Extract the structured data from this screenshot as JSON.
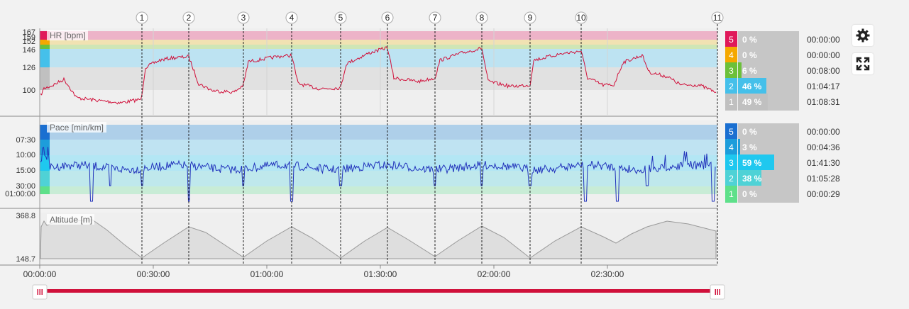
{
  "panels": {
    "hr": {
      "title": "HR [bpm]",
      "ticks": [
        "167",
        "159",
        "152",
        "146",
        "126",
        "100"
      ]
    },
    "pace": {
      "title": "Pace [min/km]",
      "ticks": [
        "07:30",
        "10:00",
        "15:00",
        "30:00",
        "01:00:00"
      ]
    },
    "altitude": {
      "title": "Altitude [m]",
      "ticks": [
        "368.8",
        "148.7"
      ]
    }
  },
  "time_axis": [
    "00:00:00",
    "00:30:00",
    "01:00:00",
    "01:30:00",
    "02:00:00",
    "02:30:00"
  ],
  "laps": [
    "1",
    "2",
    "3",
    "4",
    "5",
    "6",
    "7",
    "8",
    "9",
    "10",
    "11"
  ],
  "hr_zones": [
    {
      "num": "5",
      "pct": "0 %",
      "time": "00:00:00",
      "color": "#e0195a",
      "fraction": 0
    },
    {
      "num": "4",
      "pct": "0 %",
      "time": "00:00:00",
      "color": "#f5a800",
      "fraction": 0
    },
    {
      "num": "3",
      "pct": "6 %",
      "time": "00:08:00",
      "color": "#6cc03a",
      "fraction": 0.06
    },
    {
      "num": "2",
      "pct": "46 %",
      "time": "01:04:17",
      "color": "#45c0ea",
      "fraction": 0.46
    },
    {
      "num": "1",
      "pct": "49 %",
      "time": "01:08:31",
      "color": "#c0c0c0",
      "fraction": 0.49
    }
  ],
  "pace_zones": [
    {
      "num": "5",
      "pct": "0 %",
      "time": "00:00:00",
      "color": "#1a6fd1",
      "fraction": 0
    },
    {
      "num": "4",
      "pct": "3 %",
      "time": "00:04:36",
      "color": "#1d9ddb",
      "fraction": 0.03
    },
    {
      "num": "3",
      "pct": "59 %",
      "time": "01:41:30",
      "color": "#1fc8ef",
      "fraction": 0.59
    },
    {
      "num": "2",
      "pct": "38 %",
      "time": "01:05:28",
      "color": "#4fd2d6",
      "fraction": 0.38
    },
    {
      "num": "1",
      "pct": "0 %",
      "time": "00:00:29",
      "color": "#5ee08a",
      "fraction": 0
    }
  ],
  "icons": {
    "settings": "gear-icon",
    "fullscreen": "expand-icon",
    "range_handle": "drag-handle-icon"
  },
  "colors": {
    "hr_line": "#d0103a",
    "pace_line": "#2233bb",
    "range": "#d0103a"
  }
}
